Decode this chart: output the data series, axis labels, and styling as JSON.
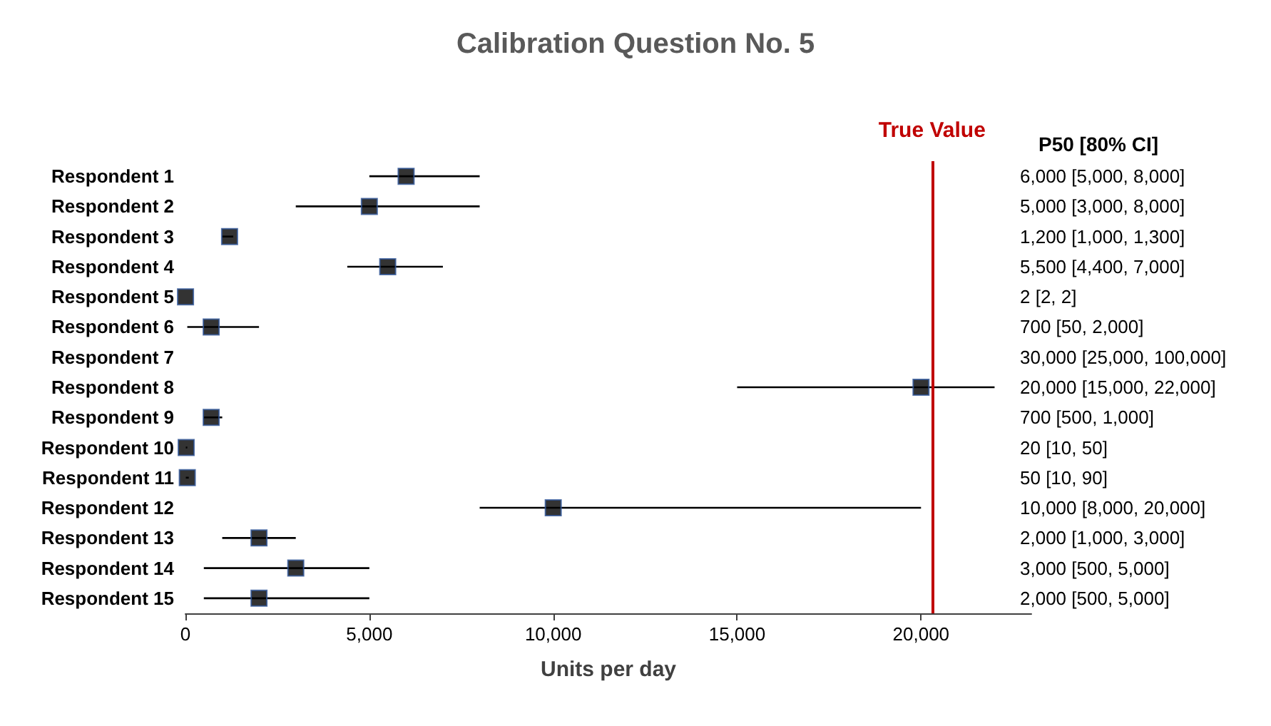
{
  "chart_data": {
    "type": "scatter",
    "orientation": "horizontal",
    "title": "Calibration Question No. 5",
    "xlabel": "Units per day",
    "categories": [
      "Respondent 1",
      "Respondent 2",
      "Respondent 3",
      "Respondent 4",
      "Respondent 5",
      "Respondent 6",
      "Respondent 7",
      "Respondent 8",
      "Respondent 9",
      "Respondent 10",
      "Respondent 11",
      "Respondent 12",
      "Respondent 13",
      "Respondent 14",
      "Respondent 15"
    ],
    "values": [
      6000,
      5000,
      1200,
      5500,
      2,
      700,
      null,
      20000,
      700,
      20,
      50,
      10000,
      2000,
      3000,
      2000
    ],
    "errors": [
      [
        5000,
        8000
      ],
      [
        3000,
        8000
      ],
      [
        1000,
        1300
      ],
      [
        4400,
        7000
      ],
      [
        2,
        2
      ],
      [
        50,
        2000
      ],
      null,
      [
        15000,
        22000
      ],
      [
        500,
        1000
      ],
      [
        10,
        50
      ],
      [
        10,
        90
      ],
      [
        8000,
        20000
      ],
      [
        1000,
        3000
      ],
      [
        500,
        5000
      ],
      [
        500,
        5000
      ]
    ],
    "annotations": [
      "P50 [80% CI]",
      "6,000 [5,000, 8,000]",
      "5,000 [3,000, 8,000]",
      "1,200 [1,000, 1,300]",
      "5,500 [4,400, 7,000]",
      "2 [2, 2]",
      "700 [50, 2,000]",
      "30,000 [25,000, 100,000]",
      "20,000 [15,000, 22,000]",
      "700 [500, 1,000]",
      "20 [10, 50]",
      "50 [10, 90]",
      "10,000 [8,000, 20,000]",
      "2,000 [1,000, 3,000]",
      "3,000 [500, 5,000]",
      "2,000 [500, 5,000]"
    ],
    "color": "#000000",
    "marker": "square",
    "grid": false,
    "xlim": [
      0,
      23000
    ],
    "xticks": [
      {
        "value": 0,
        "label": "0"
      },
      {
        "value": 5000,
        "label": "5,000"
      },
      {
        "value": 10000,
        "label": "10,000"
      },
      {
        "value": 15000,
        "label": "15,000"
      },
      {
        "value": 20000,
        "label": "20,000"
      }
    ],
    "ref_lines": [
      {
        "axis": "x",
        "value": 20300,
        "label": "True Value",
        "color": "#c00000"
      }
    ]
  }
}
